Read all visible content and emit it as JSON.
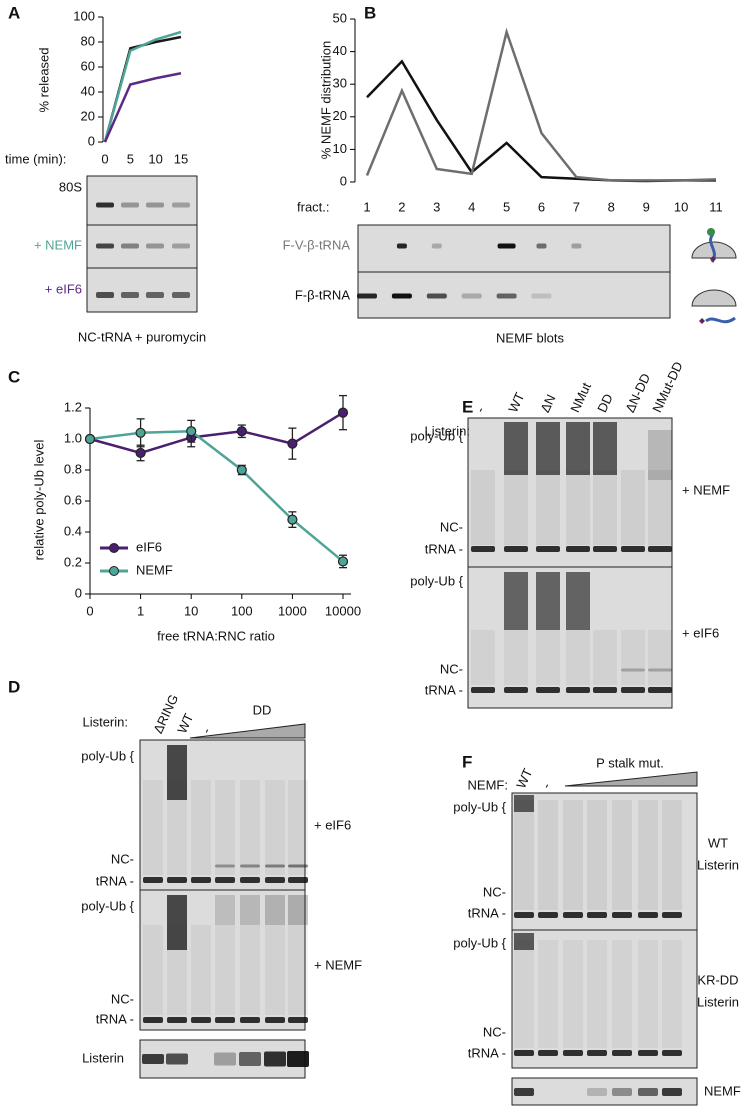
{
  "panel_labels": [
    "A",
    "B",
    "C",
    "D",
    "E",
    "F"
  ],
  "chart_data": [
    {
      "type": "line",
      "y_label": "% released",
      "x_label": "time (min):",
      "x": [
        0,
        5,
        10,
        15
      ],
      "xlim": [
        0,
        15
      ],
      "xticks": [
        0,
        5,
        10,
        15
      ],
      "ylim": [
        0,
        100
      ],
      "yticks": [
        0,
        20,
        40,
        60,
        80,
        100
      ],
      "series": [
        {
          "color": "#1a1a1a",
          "values": [
            0,
            75,
            80,
            84
          ]
        },
        {
          "color": "#4ea597",
          "values": [
            0,
            73,
            82,
            88
          ]
        },
        {
          "color": "#5b2a86",
          "values": [
            0,
            46,
            51,
            55
          ]
        }
      ]
    },
    {
      "type": "line",
      "y_label": "% NEMF distribution",
      "x_label": "fract.:",
      "categories": [
        "1",
        "2",
        "3",
        "4",
        "5",
        "6",
        "7",
        "8",
        "9",
        "10",
        "11"
      ],
      "ylim": [
        0,
        50
      ],
      "yticks": [
        0,
        10,
        20,
        30,
        40,
        50
      ],
      "series": [
        {
          "color": "#111111",
          "values": [
            26,
            37,
            19,
            3,
            12,
            1.5,
            1,
            0.5,
            0.3,
            0.5,
            0.5
          ]
        },
        {
          "color": "#6e6e6e",
          "values": [
            2,
            28,
            4,
            2.5,
            46,
            15,
            1.5,
            0.5,
            0.5,
            0.5,
            0.8
          ]
        }
      ]
    },
    {
      "type": "line",
      "y_label": "relative poly-Ub level",
      "x_label": "free tRNA:RNC ratio",
      "categories": [
        "0",
        "1",
        "10",
        "100",
        "1000",
        "10000"
      ],
      "ylim": [
        0,
        1.2
      ],
      "yticks": [
        0,
        0.2,
        0.4,
        0.6,
        0.8,
        {
          "value": 1,
          "label": "1.0"
        },
        1.2
      ],
      "markers": true,
      "legend": "lower left",
      "series": [
        {
          "name": "eIF6",
          "color": "#4b1f6f",
          "values": [
            1.0,
            0.91,
            1.01,
            1.05,
            0.97,
            1.17
          ],
          "errors": [
            0,
            0.05,
            0.06,
            0.04,
            0.1,
            0.11
          ]
        },
        {
          "name": "NEMF",
          "color": "#4ea597",
          "values": [
            1.0,
            1.04,
            1.05,
            0.8,
            0.48,
            0.21
          ],
          "errors": [
            0,
            0.09,
            0.07,
            0.03,
            0.05,
            0.04
          ]
        }
      ]
    }
  ],
  "gels": {
    "a": {
      "rows": [
        "80S",
        "+ NEMF",
        "+ eIF6"
      ],
      "caption": "NC-tRNA + puromycin"
    },
    "b": {
      "rows": [
        "F-V-β-tRNA",
        "F-β-tRNA"
      ],
      "caption": "NEMF blots"
    },
    "d": {
      "lane_title": "Listerin:",
      "lanes": [
        "ΔRING",
        "WT",
        "-"
      ],
      "titration": "DD",
      "blocks": [
        {
          "top": "poly-Ub {",
          "mid": "NC-",
          "bottom": "tRNA -",
          "condition": "+ eIF6"
        },
        {
          "top": "poly-Ub {",
          "mid": "NC-",
          "bottom": "tRNA -",
          "condition": "+ NEMF"
        }
      ],
      "blot": "Listerin"
    },
    "e": {
      "lane_title": "Listerin:",
      "lanes": [
        "-",
        "WT",
        "ΔN",
        "NMut",
        "DD",
        "ΔN-DD",
        "NMut-DD"
      ],
      "blocks": [
        {
          "top": "poly-Ub {",
          "mid": "NC-",
          "bottom": "tRNA -",
          "condition": "+ NEMF"
        },
        {
          "top": "poly-Ub {",
          "mid": "NC-",
          "bottom": "tRNA -",
          "condition": "+ eIF6"
        }
      ]
    },
    "f": {
      "lane_title": "NEMF:",
      "lanes": [
        "WT",
        "-"
      ],
      "titration": "P stalk mut.",
      "blocks": [
        {
          "top": "poly-Ub {",
          "mid": "NC-",
          "bottom": "tRNA -",
          "condition": [
            "WT",
            "Listerin"
          ]
        },
        {
          "top": "poly-Ub {",
          "mid": "NC-",
          "bottom": "tRNA -",
          "condition": [
            "KR-DD",
            "Listerin"
          ]
        }
      ],
      "blot": "NEMF"
    }
  }
}
